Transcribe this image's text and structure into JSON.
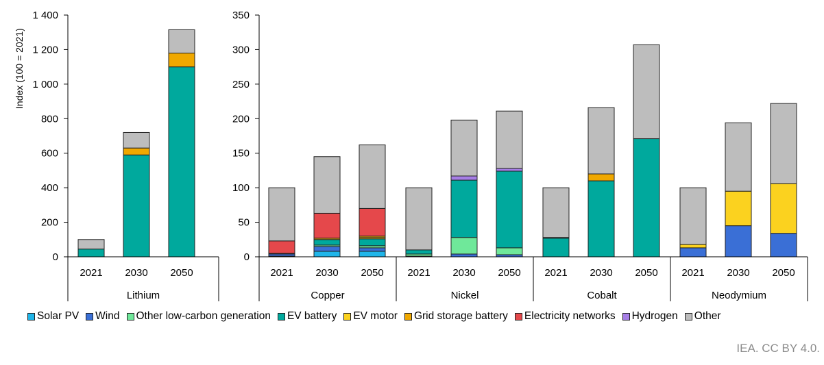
{
  "chart_data": {
    "type": "bar",
    "stacked": true,
    "ylabel": "Index (100 = 2021)",
    "source": "IEA. CC BY 4.0.",
    "legend_position": "bottom",
    "series": [
      {
        "name": "Solar PV",
        "color": "#1fb5e9"
      },
      {
        "name": "Wind",
        "color": "#3a6fd6"
      },
      {
        "name": "Other low-carbon generation",
        "color": "#6fe89a"
      },
      {
        "name": "EV battery",
        "color": "#00a99d"
      },
      {
        "name": "EV motor",
        "color": "#fbd21f"
      },
      {
        "name": "Grid storage battery",
        "color": "#f0a800"
      },
      {
        "name": "Electricity networks",
        "color": "#e5484b"
      },
      {
        "name": "Hydrogen",
        "color": "#a67ee6"
      },
      {
        "name": "Other",
        "color": "#bdbdbd"
      }
    ],
    "panels": [
      {
        "ylim": [
          0,
          1400
        ],
        "yticks": [
          0,
          200,
          400,
          600,
          800,
          1000,
          1200,
          1400
        ],
        "ytick_labels": [
          "0",
          "200",
          "400",
          "600",
          "800",
          "1 000",
          "1 200",
          "1 400"
        ],
        "groups": [
          {
            "name": "Lithium",
            "bars": [
              {
                "year": "2021",
                "values": [
                  0,
                  0,
                  0,
                  45,
                  0,
                  0,
                  0,
                  0,
                  55
                ]
              },
              {
                "year": "2030",
                "values": [
                  0,
                  0,
                  0,
                  590,
                  0,
                  40,
                  0,
                  0,
                  90
                ]
              },
              {
                "year": "2050",
                "values": [
                  0,
                  0,
                  0,
                  1100,
                  0,
                  80,
                  0,
                  0,
                  135
                ]
              }
            ]
          }
        ]
      },
      {
        "ylim": [
          0,
          350
        ],
        "yticks": [
          0,
          50,
          100,
          150,
          200,
          250,
          300,
          350
        ],
        "ytick_labels": [
          "0",
          "50",
          "100",
          "150",
          "200",
          "250",
          "300",
          "350"
        ],
        "groups": [
          {
            "name": "Copper",
            "bars": [
              {
                "year": "2021",
                "values": [
                  1,
                  3,
                  1,
                  0,
                  0,
                  0,
                  18,
                  0,
                  77
                ]
              },
              {
                "year": "2030",
                "values": [
                  8,
                  7,
                  2,
                  8,
                  0,
                  2,
                  36,
                  0,
                  82
                ]
              },
              {
                "year": "2050",
                "values": [
                  8,
                  5,
                  3,
                  10,
                  2,
                  2,
                  40,
                  0,
                  92
                ]
              }
            ]
          },
          {
            "name": "Nickel",
            "bars": [
              {
                "year": "2021",
                "values": [
                  0,
                  1,
                  3,
                  6,
                  0,
                  0,
                  0,
                  0,
                  90
                ]
              },
              {
                "year": "2030",
                "values": [
                  0,
                  4,
                  24,
                  83,
                  0,
                  0,
                  0,
                  6,
                  81
                ]
              },
              {
                "year": "2050",
                "values": [
                  0,
                  3,
                  10,
                  111,
                  0,
                  0,
                  0,
                  4,
                  83
                ]
              }
            ]
          },
          {
            "name": "Cobalt",
            "bars": [
              {
                "year": "2021",
                "values": [
                  0,
                  0,
                  0,
                  27,
                  0,
                  0,
                  0,
                  1,
                  72
                ]
              },
              {
                "year": "2030",
                "values": [
                  0,
                  0,
                  0,
                  110,
                  0,
                  10,
                  0,
                  0,
                  96
                ]
              },
              {
                "year": "2050",
                "values": [
                  0,
                  0,
                  0,
                  171,
                  0,
                  0,
                  0,
                  0,
                  136
                ]
              }
            ]
          },
          {
            "name": "Neodymium",
            "bars": [
              {
                "year": "2021",
                "values": [
                  0,
                  13,
                  0,
                  0,
                  5,
                  0,
                  0,
                  0,
                  82
                ]
              },
              {
                "year": "2030",
                "values": [
                  0,
                  45,
                  0,
                  0,
                  50,
                  0,
                  0,
                  0,
                  99
                ]
              },
              {
                "year": "2050",
                "values": [
                  0,
                  34,
                  0,
                  0,
                  72,
                  0,
                  0,
                  0,
                  116
                ]
              }
            ]
          }
        ]
      }
    ]
  }
}
